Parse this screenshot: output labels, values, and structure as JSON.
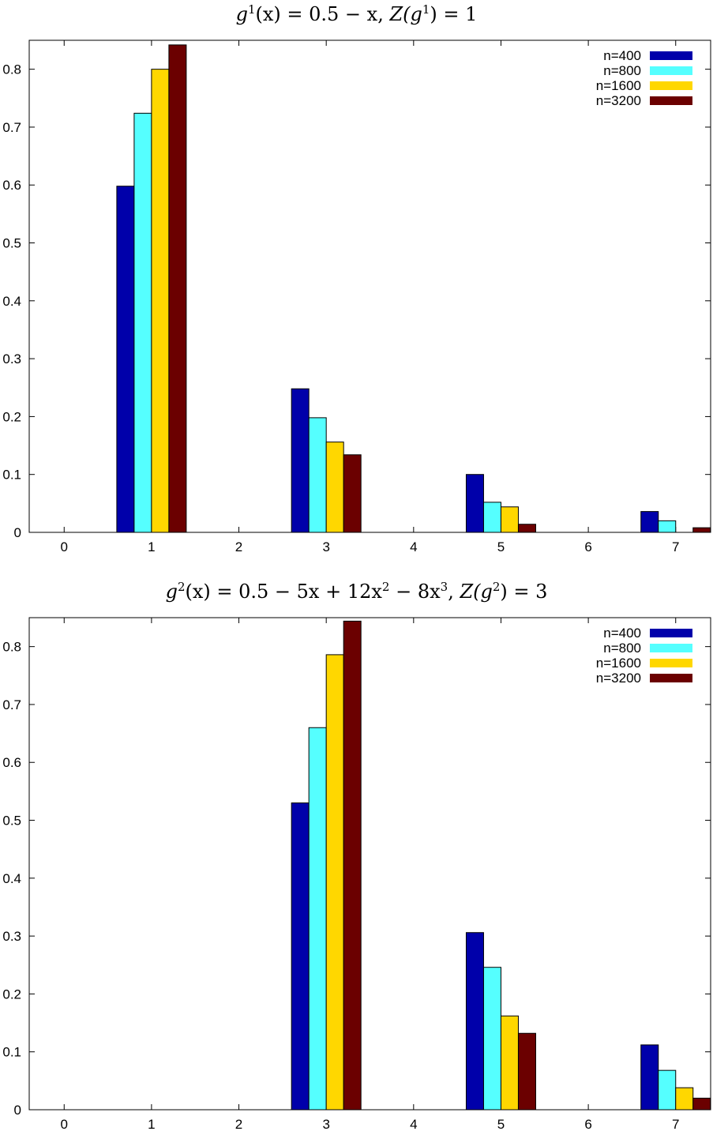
{
  "charts": [
    {
      "title": {
        "g": "g",
        "g_sup": "1",
        "expr": "(x) = 0.5 − x, ",
        "z": "Z(g",
        "z_sup": "1",
        "z_end": ") = 1"
      }
    },
    {
      "title": {
        "g": "g",
        "g_sup": "2",
        "expr": "(x) = 0.5 − 5x + 12x",
        "x2_sup": "2",
        "expr2": " − 8x",
        "x3_sup": "3",
        "expr3": ", ",
        "z": "Z(g",
        "z_sup": "2",
        "z_end": ") = 3"
      }
    }
  ],
  "chart_data": [
    {
      "type": "bar",
      "title": "g^1(x) = 0.5 − x, Z(g^1) = 1",
      "categories": [
        "0",
        "1",
        "2",
        "3",
        "4",
        "5",
        "6",
        "7"
      ],
      "xlim": [
        -0.4,
        7.4
      ],
      "ylim": [
        0,
        0.85
      ],
      "yticks": [
        "0",
        "0.1",
        "0.2",
        "0.3",
        "0.4",
        "0.5",
        "0.6",
        "0.7",
        "0.8"
      ],
      "legend_position": "top-right",
      "series": [
        {
          "name": "n=400",
          "color": "#0000aa",
          "values": [
            0,
            0.598,
            0,
            0.248,
            0,
            0.1,
            0,
            0.036
          ]
        },
        {
          "name": "n=800",
          "color": "#55ffff",
          "values": [
            0,
            0.724,
            0,
            0.198,
            0,
            0.052,
            0,
            0.02
          ]
        },
        {
          "name": "n=1600",
          "color": "#ffd700",
          "values": [
            0,
            0.8,
            0,
            0.156,
            0,
            0.044,
            0,
            0.0
          ]
        },
        {
          "name": "n=3200",
          "color": "#6b0000",
          "values": [
            0,
            0.842,
            0,
            0.134,
            0,
            0.014,
            0,
            0.008
          ]
        }
      ]
    },
    {
      "type": "bar",
      "title": "g^2(x) = 0.5 − 5x + 12x^2 − 8x^3, Z(g^2) = 3",
      "categories": [
        "0",
        "1",
        "2",
        "3",
        "4",
        "5",
        "6",
        "7"
      ],
      "xlim": [
        -0.4,
        7.4
      ],
      "ylim": [
        0,
        0.85
      ],
      "yticks": [
        "0",
        "0.1",
        "0.2",
        "0.3",
        "0.4",
        "0.5",
        "0.6",
        "0.7",
        "0.8"
      ],
      "legend_position": "top-right",
      "series": [
        {
          "name": "n=400",
          "color": "#0000aa",
          "values": [
            0,
            0,
            0,
            0.53,
            0,
            0.306,
            0,
            0.112
          ]
        },
        {
          "name": "n=800",
          "color": "#55ffff",
          "values": [
            0,
            0,
            0,
            0.66,
            0,
            0.246,
            0,
            0.068
          ]
        },
        {
          "name": "n=1600",
          "color": "#ffd700",
          "values": [
            0,
            0,
            0,
            0.786,
            0,
            0.162,
            0,
            0.038
          ]
        },
        {
          "name": "n=3200",
          "color": "#6b0000",
          "values": [
            0,
            0,
            0,
            0.844,
            0,
            0.132,
            0,
            0.02
          ]
        }
      ]
    }
  ]
}
